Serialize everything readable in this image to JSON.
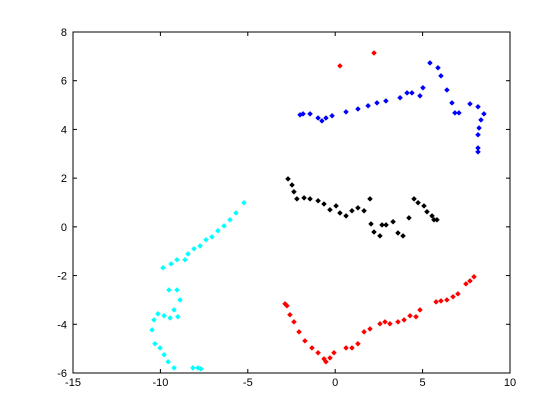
{
  "chart_data": {
    "type": "scatter",
    "xlim": [
      -15,
      10
    ],
    "xticks": [
      -15,
      -10,
      -5,
      0,
      5,
      10
    ],
    "ylim": [
      -6,
      8
    ],
    "yticks": [
      -6,
      -4,
      -2,
      0,
      2,
      4,
      6,
      8
    ],
    "marker": "diamond",
    "series": [
      {
        "color": "#0000ff",
        "x": [
          -2.01,
          -1.84,
          -1.44,
          -0.98,
          -0.76,
          -0.53,
          -0.18,
          0.62,
          1.3,
          1.88,
          2.39,
          2.9,
          3.71,
          4.11,
          4.39,
          4.85,
          5.02,
          5.42,
          5.88,
          6.05,
          6.39,
          6.68,
          6.85,
          7.08,
          7.71,
          8.17,
          8.51,
          8.34,
          8.23,
          8.17,
          8.17,
          8.17
        ],
        "values": [
          4.6,
          4.64,
          4.64,
          4.47,
          4.35,
          4.47,
          4.56,
          4.72,
          4.84,
          4.97,
          5.09,
          5.17,
          5.3,
          5.5,
          5.5,
          5.38,
          5.71,
          6.73,
          6.53,
          6.2,
          5.62,
          5.09,
          4.68,
          4.68,
          5.05,
          4.93,
          4.64,
          4.39,
          4.06,
          3.78,
          3.24,
          3.08
        ]
      },
      {
        "color": "#000000",
        "x": [
          -2.7,
          -2.47,
          -2.36,
          -2.19,
          -1.78,
          -1.44,
          -0.98,
          -0.64,
          -0.3,
          0.05,
          0.27,
          0.62,
          0.96,
          1.3,
          1.65,
          1.99,
          2.05,
          2.22,
          2.56,
          2.68,
          2.91,
          3.31,
          3.59,
          3.88,
          4.22,
          4.51,
          4.74,
          5.08,
          5.25,
          5.54,
          5.65,
          5.82
        ],
        "values": [
          1.97,
          1.72,
          1.44,
          1.15,
          1.19,
          1.15,
          1.07,
          0.94,
          0.7,
          0.86,
          0.57,
          0.45,
          0.66,
          0.78,
          0.66,
          1.15,
          0.12,
          -0.21,
          -0.37,
          0.08,
          0.08,
          0.21,
          -0.25,
          -0.37,
          0.37,
          1.15,
          0.99,
          0.86,
          0.62,
          0.45,
          0.29,
          0.29
        ]
      },
      {
        "color": "#ff0000",
        "x": [
          0.27,
          2.22,
          -2.87,
          -2.76,
          -2.59,
          -2.36,
          -2.07,
          -1.73,
          -1.33,
          -0.98,
          -0.64,
          -0.53,
          -0.3,
          -0.07,
          0.62,
          0.96,
          1.3,
          1.65,
          1.99,
          2.56,
          2.85,
          3.13,
          3.59,
          3.94,
          4.28,
          4.62,
          4.85,
          5.77,
          6.05,
          6.39,
          6.74,
          7.02,
          7.48,
          7.71,
          7.94
        ],
        "values": [
          6.61,
          7.14,
          -3.16,
          -3.24,
          -3.61,
          -3.9,
          -4.31,
          -4.68,
          -4.97,
          -5.17,
          -5.42,
          -5.54,
          -5.38,
          -5.17,
          -4.97,
          -4.97,
          -4.8,
          -4.31,
          -4.19,
          -3.98,
          -3.9,
          -3.98,
          -3.9,
          -3.82,
          -3.65,
          -3.69,
          -3.41,
          -3.08,
          -3.04,
          -3.0,
          -2.87,
          -2.75,
          -2.34,
          -2.22,
          -2.05
        ]
      },
      {
        "color": "#00ffff",
        "x": [
          -5.22,
          -5.68,
          -6.02,
          -6.36,
          -6.71,
          -7.05,
          -7.39,
          -7.73,
          -8.08,
          -8.42,
          -8.59,
          -9.05,
          -9.39,
          -9.85,
          -9.51,
          -9.05,
          -8.88,
          -9.22,
          -9.0,
          -9.45,
          -9.79,
          -10.14,
          -10.37,
          -10.48,
          -10.31,
          -10.02,
          -9.79,
          -9.56,
          -9.22,
          -8.14,
          -7.85,
          -7.68
        ],
        "values": [
          0.99,
          0.57,
          0.29,
          0.04,
          -0.16,
          -0.41,
          -0.53,
          -0.78,
          -0.9,
          -1.11,
          -1.35,
          -1.35,
          -1.52,
          -1.68,
          -2.59,
          -2.59,
          -3.0,
          -3.41,
          -3.69,
          -3.74,
          -3.65,
          -3.57,
          -3.82,
          -4.23,
          -4.8,
          -4.97,
          -5.25,
          -5.54,
          -5.79,
          -5.79,
          -5.79,
          -5.83
        ]
      }
    ]
  }
}
